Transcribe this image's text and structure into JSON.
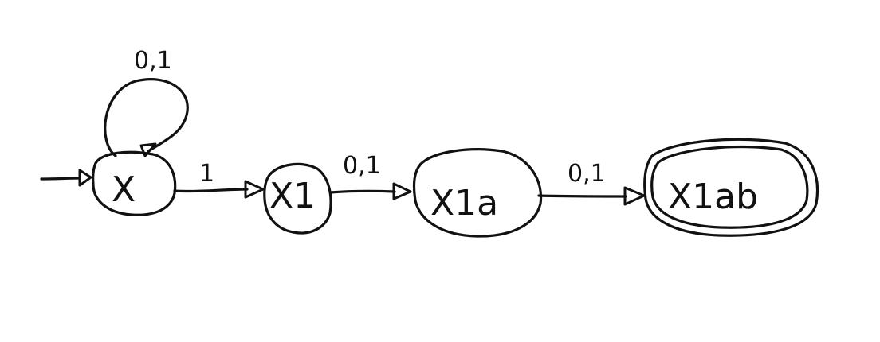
{
  "diagram": {
    "states": [
      {
        "label": "X",
        "start": true,
        "accepting": false
      },
      {
        "label": "X1",
        "start": false,
        "accepting": false
      },
      {
        "label": "X1a",
        "start": false,
        "accepting": false
      },
      {
        "label": "X1ab",
        "start": false,
        "accepting": true
      }
    ],
    "transitions": [
      {
        "from": "X",
        "to": "X",
        "label": "0,1"
      },
      {
        "from": "X",
        "to": "X1",
        "label": "1"
      },
      {
        "from": "X1",
        "to": "X1a",
        "label": "0,1"
      },
      {
        "from": "X1a",
        "to": "X1ab",
        "label": "0,1"
      }
    ],
    "ink_color": "#111111",
    "background_color": "#ffffff"
  }
}
